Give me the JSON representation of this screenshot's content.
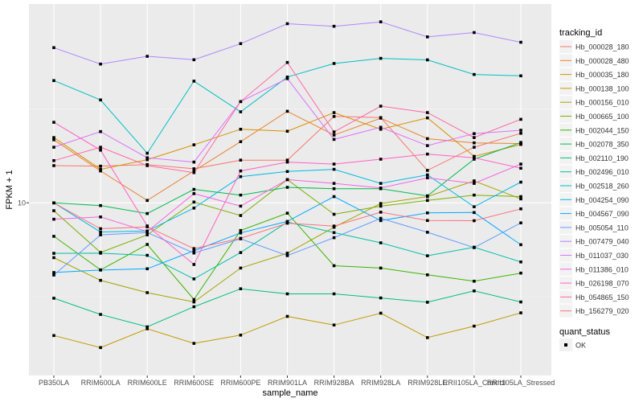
{
  "chart_data": {
    "type": "line",
    "xlabel": "sample_name",
    "ylabel": "FPKM + 1",
    "y_scale": "log",
    "ylim": [
      1.2,
      115
    ],
    "yticks": [
      10
    ],
    "ytick_labels": [
      "10"
    ],
    "grid": true,
    "legend_position": "right",
    "categories": [
      "PB350LA",
      "RRIM600LA",
      "RRIM600LE",
      "RRIM600SE",
      "RRIM600PE",
      "RRIM901LA",
      "RRIM928BA",
      "RRIM928LA",
      "RRIM928LE",
      "RRII105LA_Control",
      "RRII105LA_Stressed"
    ],
    "series": [
      {
        "name": "Hb_000028_180",
        "color": "#F8766D",
        "values": [
          15.8,
          15.7,
          16.0,
          15.2,
          16.9,
          16.9,
          28.9,
          28.5,
          14.9,
          19.8,
          23.5
        ]
      },
      {
        "name": "Hb_000028_480",
        "color": "#EA8331",
        "values": [
          21.7,
          14.8,
          10.3,
          14.8,
          21.2,
          30.8,
          23.0,
          28.3,
          22.0,
          20.9,
          20.7
        ]
      },
      {
        "name": "Hb_000035_180",
        "color": "#D89000",
        "values": [
          22.3,
          15.1,
          17.0,
          20.4,
          24.7,
          24.1,
          30.3,
          24.7,
          28.4,
          17.7,
          20.5
        ]
      },
      {
        "name": "Hb_000138_100",
        "color": "#C09B00",
        "values": [
          1.96,
          1.69,
          2.13,
          1.78,
          1.97,
          2.48,
          2.23,
          2.58,
          1.91,
          2.2,
          2.59
        ]
      },
      {
        "name": "Hb_000156_010",
        "color": "#A3A500",
        "values": [
          5.1,
          3.86,
          3.32,
          2.96,
          4.49,
          5.39,
          7.41,
          9.92,
          10.8,
          13.1,
          10.5
        ]
      },
      {
        "name": "Hb_000665_100",
        "color": "#7CAE00",
        "values": [
          9.08,
          5.44,
          6.75,
          10.1,
          8.56,
          13.3,
          8.69,
          9.6,
          10.3,
          11.0,
          10.8
        ]
      },
      {
        "name": "Hb_002044_150",
        "color": "#39B600",
        "values": [
          6.63,
          4.39,
          6.0,
          3.05,
          7.12,
          8.81,
          4.62,
          4.49,
          4.13,
          3.82,
          4.22
        ]
      },
      {
        "name": "Hb_002078_350",
        "color": "#00BB4E",
        "values": [
          10.0,
          9.67,
          8.77,
          11.8,
          11.0,
          12.1,
          11.9,
          11.9,
          10.9,
          17.1,
          21.0
        ]
      },
      {
        "name": "Hb_002110_190",
        "color": "#00BF7D",
        "values": [
          3.1,
          2.54,
          2.18,
          2.79,
          3.48,
          3.27,
          3.27,
          3.11,
          2.95,
          3.39,
          2.96
        ]
      },
      {
        "name": "Hb_002496_010",
        "color": "#00C1A3",
        "values": [
          5.38,
          5.39,
          5.25,
          3.93,
          5.43,
          7.9,
          6.94,
          6.12,
          5.22,
          5.8,
          4.84
        ]
      },
      {
        "name": "Hb_002518_260",
        "color": "#00BFC4",
        "values": [
          44.9,
          35.4,
          18.4,
          44.6,
          30.6,
          46.9,
          55.4,
          59.0,
          57.9,
          48.4,
          47.6
        ]
      },
      {
        "name": "Hb_004254_090",
        "color": "#00B8E7",
        "values": [
          10.0,
          6.99,
          7.08,
          9.38,
          13.8,
          14.7,
          15.1,
          12.7,
          14.1,
          9.53,
          12.9
        ]
      },
      {
        "name": "Hb_004567_090",
        "color": "#00A9FF",
        "values": [
          4.25,
          4.38,
          4.45,
          5.55,
          6.91,
          7.96,
          10.8,
          8.04,
          8.84,
          8.88,
          5.98
        ]
      },
      {
        "name": "Hb_005054_110",
        "color": "#619CFF",
        "values": [
          4.12,
          6.75,
          6.94,
          5.4,
          6.43,
          5.23,
          6.52,
          8.27,
          6.97,
          5.77,
          7.82
        ]
      },
      {
        "name": "Hb_007479_040",
        "color": "#AE87FF",
        "values": [
          67.3,
          55.0,
          60.5,
          58.0,
          70.7,
          90.3,
          87.5,
          92.4,
          76.8,
          81.0,
          71.9
        ]
      },
      {
        "name": "Hb_011037_030",
        "color": "#DB72FB",
        "values": [
          19.8,
          24.0,
          17.4,
          16.5,
          34.7,
          46.0,
          21.8,
          25.3,
          20.2,
          23.4,
          24.4
        ]
      },
      {
        "name": "Hb_011386_010",
        "color": "#F564E3",
        "values": [
          8.18,
          8.41,
          7.03,
          11.2,
          9.61,
          13.3,
          12.7,
          12.0,
          13.6,
          12.7,
          16.1
        ]
      },
      {
        "name": "Hb_026198_070",
        "color": "#FF61C3",
        "values": [
          26.9,
          19.1,
          7.53,
          4.69,
          14.8,
          16.5,
          16.1,
          17.1,
          18.2,
          17.4,
          15.3
        ]
      },
      {
        "name": "Hb_054865_150",
        "color": "#FF67A4",
        "values": [
          16.8,
          19.8,
          15.8,
          14.5,
          34.7,
          56.1,
          23.9,
          32.8,
          30.3,
          22.3,
          27.9
        ]
      },
      {
        "name": "Hb_156279_020",
        "color": "#FC717F",
        "values": [
          10.0,
          7.28,
          7.45,
          5.7,
          6.47,
          7.79,
          7.52,
          8.92,
          8.05,
          8.03,
          9.29
        ]
      }
    ],
    "legend_title": "tracking_id",
    "shape_legend_title": "quant_status",
    "shape_legend_items": [
      "OK"
    ]
  }
}
